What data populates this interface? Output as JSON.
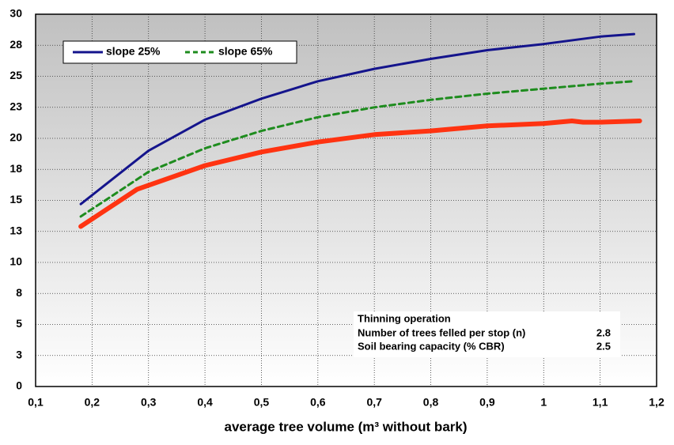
{
  "chart_data": {
    "type": "line",
    "x_label": "average tree volume (m³ without bark)",
    "xlim": [
      0.1,
      1.2
    ],
    "xticks": [
      {
        "value": 0.1,
        "label": "0,1"
      },
      {
        "value": 0.2,
        "label": "0,2"
      },
      {
        "value": 0.3,
        "label": "0,3"
      },
      {
        "value": 0.4,
        "label": "0,4"
      },
      {
        "value": 0.5,
        "label": "0,5"
      },
      {
        "value": 0.6,
        "label": "0,6"
      },
      {
        "value": 0.7,
        "label": "0,7"
      },
      {
        "value": 0.8,
        "label": "0,8"
      },
      {
        "value": 0.9,
        "label": "0,9"
      },
      {
        "value": 1,
        "label": "1"
      },
      {
        "value": 1.1,
        "label": "1,1"
      },
      {
        "value": 1.2,
        "label": "1,2"
      }
    ],
    "ylim": [
      0,
      30
    ],
    "yticks": [
      0,
      {
        "value": 2.5,
        "label": "3"
      },
      5,
      {
        "value": 7.5,
        "label": "8"
      },
      10,
      {
        "value": 12.5,
        "label": "13"
      },
      15,
      {
        "value": 17.5,
        "label": "18"
      },
      20,
      {
        "value": 22.5,
        "label": "23"
      },
      25,
      {
        "value": 27.5,
        "label": "28"
      },
      30
    ],
    "grid": true,
    "legend": "top-left",
    "series": [
      {
        "name": "slope 25%",
        "color": "#14148c",
        "dash": false,
        "width": 3,
        "x": [
          0.18,
          0.3,
          0.4,
          0.5,
          0.6,
          0.7,
          0.8,
          0.9,
          1.0,
          1.1,
          1.16
        ],
        "values": [
          14.7,
          19.0,
          21.5,
          23.2,
          24.6,
          25.6,
          26.4,
          27.1,
          27.6,
          28.2,
          28.4
        ]
      },
      {
        "name": "slope 65%",
        "color": "#1e8c1e",
        "dash": true,
        "width": 3,
        "x": [
          0.18,
          0.3,
          0.4,
          0.5,
          0.6,
          0.7,
          0.8,
          0.9,
          1.0,
          1.1,
          1.16
        ],
        "values": [
          13.7,
          17.3,
          19.2,
          20.6,
          21.7,
          22.5,
          23.1,
          23.6,
          24.0,
          24.4,
          24.6
        ]
      },
      {
        "color": "#ff3311",
        "dash": false,
        "width": 6,
        "x": [
          0.18,
          0.28,
          0.4,
          0.5,
          0.6,
          0.7,
          0.8,
          0.9,
          1.0,
          1.05,
          1.07,
          1.1,
          1.17
        ],
        "values": [
          12.9,
          15.9,
          17.8,
          18.9,
          19.7,
          20.3,
          20.6,
          21.0,
          21.2,
          21.4,
          21.3,
          21.3,
          21.4
        ]
      }
    ],
    "annotation": {
      "title": "Thinning operation",
      "rows": [
        [
          "Number of trees felled per stop (n)",
          "2.8"
        ],
        [
          "Soil bearing capacity (% CBR)",
          "2.5"
        ]
      ]
    }
  }
}
